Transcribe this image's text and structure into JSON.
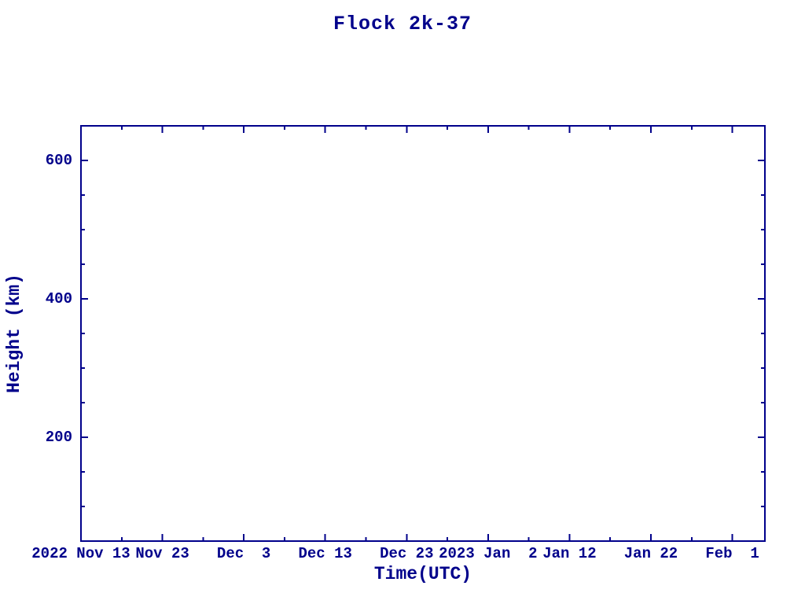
{
  "colors": {
    "accent": "#00008B",
    "background": "#ffffff"
  },
  "chart_data": {
    "type": "line",
    "title": "Flock 2k-37",
    "xlabel": "Time(UTC)",
    "ylabel": "Height (km)",
    "grid": false,
    "legend": "none",
    "series": [],
    "x_axis": {
      "unit": "days since first tick label",
      "range_days": [
        0,
        84
      ],
      "minor_tick_interval_days": 5,
      "major_ticks": [
        {
          "day": 0,
          "label": "2022 Nov 13"
        },
        {
          "day": 10,
          "label": "Nov 23"
        },
        {
          "day": 20,
          "label": "Dec  3"
        },
        {
          "day": 30,
          "label": "Dec 13"
        },
        {
          "day": 40,
          "label": "Dec 23"
        },
        {
          "day": 50,
          "label": "2023 Jan  2"
        },
        {
          "day": 60,
          "label": "Jan 12"
        },
        {
          "day": 70,
          "label": "Jan 22"
        },
        {
          "day": 80,
          "label": "Feb  1"
        }
      ]
    },
    "y_axis": {
      "unit": "km",
      "range": [
        50,
        650
      ],
      "minor_tick_interval": 50,
      "major_ticks": [
        {
          "value": 200,
          "label": "200"
        },
        {
          "value": 400,
          "label": "400"
        },
        {
          "value": 600,
          "label": "600"
        }
      ]
    }
  }
}
